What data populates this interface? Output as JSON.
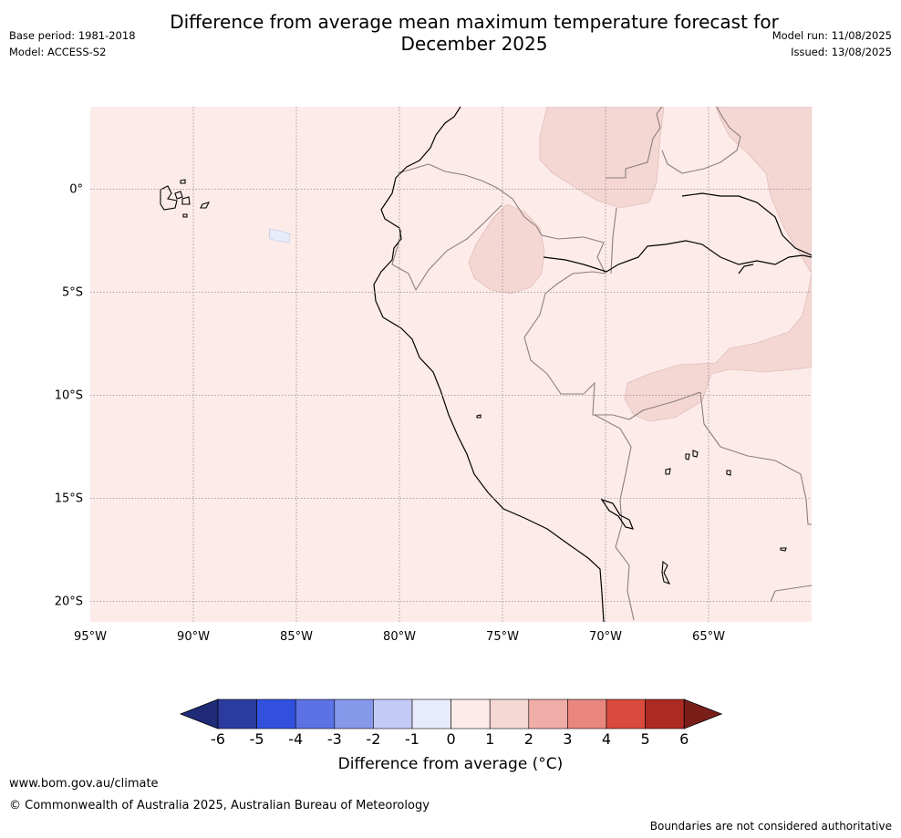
{
  "header": {
    "title_line1": "Difference from average mean maximum temperature forecast for",
    "title_line2": "December 2025",
    "base_period": "Base period: 1981-2018",
    "model": "Model: ACCESS-S2",
    "model_run": "Model run: 11/08/2025",
    "issued": "Issued: 13/08/2025"
  },
  "map": {
    "lon_labels": [
      "95°W",
      "90°W",
      "85°W",
      "80°W",
      "75°W",
      "70°W",
      "65°W"
    ],
    "lat_labels": [
      "0°",
      "5°S",
      "10°S",
      "15°S",
      "20°S"
    ],
    "extent": {
      "lon": [
        -95,
        -60
      ],
      "lat": [
        -21,
        4
      ]
    },
    "background_category": "0 to 1",
    "colors": {
      "background": "#fcebe9",
      "warm_anomaly": "#f4d6d3",
      "cool_anomaly": "#e7ecfb",
      "coast": "#000000",
      "borders": "#8a7f7f",
      "grid": "#8c8c8c"
    }
  },
  "colorbar": {
    "ticks": [
      "-6",
      "-5",
      "-4",
      "-3",
      "-2",
      "-1",
      "0",
      "1",
      "2",
      "3",
      "4",
      "5",
      "6"
    ],
    "colors": [
      "#2b3c9e",
      "#3250de",
      "#5c72e4",
      "#8698ea",
      "#c3caf5",
      "#e7ebfb",
      "#fcebe9",
      "#f5d7d4",
      "#efada8",
      "#e9867f",
      "#db4a3e",
      "#ab2a22"
    ],
    "under_color": "#1f2b78",
    "over_color": "#7a1e1a",
    "label": "Difference from average (°C)"
  },
  "footer": {
    "url": "www.bom.gov.au/climate",
    "copyright": "© Commonwealth of Australia 2025, Australian Bureau of Meteorology",
    "disclaimer": "Boundaries are not considered authoritative"
  }
}
